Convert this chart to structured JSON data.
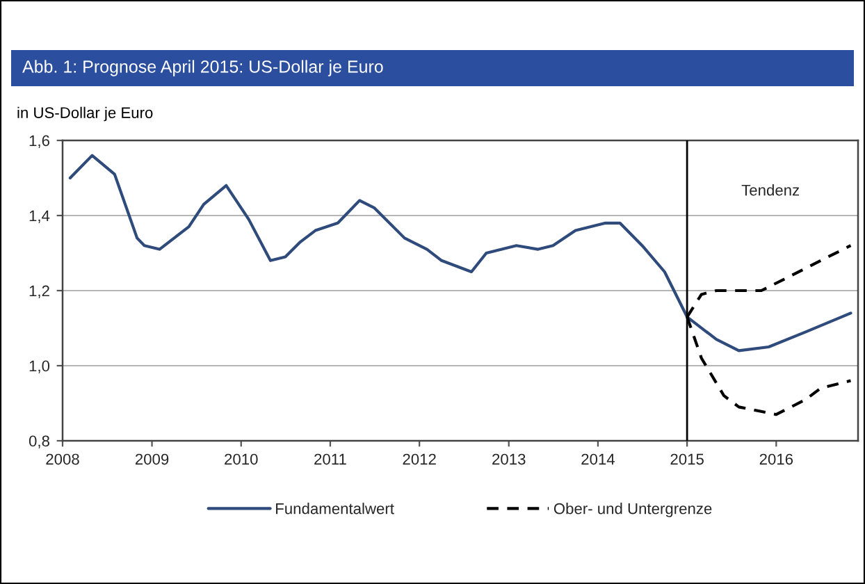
{
  "chart_data": {
    "type": "line",
    "title": "Abb. 1: Prognose April 2015: US-Dollar je Euro",
    "ylabel": "in US-Dollar je Euro",
    "annotations": [
      "Tendenz"
    ],
    "xlim": [
      "2008-01",
      "2016-12"
    ],
    "xticks": [
      "2008",
      "2009",
      "2010",
      "2011",
      "2012",
      "2013",
      "2014",
      "2015",
      "2016"
    ],
    "ylim": [
      0.8,
      1.6
    ],
    "yticks": [
      {
        "value": 0.8,
        "label": "0,8"
      },
      {
        "value": 1.0,
        "label": "1,0"
      },
      {
        "value": 1.2,
        "label": "1,2"
      },
      {
        "value": 1.4,
        "label": "1,4"
      },
      {
        "value": 1.6,
        "label": "1,6"
      }
    ],
    "grid": "y",
    "legend": "bottom",
    "ref_lines": [
      {
        "axis": "x",
        "value": "2015-01",
        "color": "#000000",
        "line_style": "solid"
      }
    ],
    "series": [
      {
        "name": "Fundamentalwert",
        "color": "#2f4b7c",
        "line_style": "solid",
        "x": [
          "2008-02",
          "2008-05",
          "2008-08",
          "2008-11",
          "2008-12",
          "2009-02",
          "2009-06",
          "2009-08",
          "2009-11",
          "2010-02",
          "2010-05",
          "2010-07",
          "2010-09",
          "2010-11",
          "2011-02",
          "2011-05",
          "2011-07",
          "2011-11",
          "2012-02",
          "2012-04",
          "2012-08",
          "2012-10",
          "2013-02",
          "2013-05",
          "2013-07",
          "2013-10",
          "2014-02",
          "2014-04",
          "2014-07",
          "2014-10",
          "2015-01",
          "2015-05",
          "2015-08",
          "2015-12",
          "2016-05",
          "2016-11"
        ],
        "values": [
          1.5,
          1.56,
          1.51,
          1.34,
          1.32,
          1.31,
          1.37,
          1.43,
          1.48,
          1.39,
          1.28,
          1.29,
          1.33,
          1.36,
          1.38,
          1.44,
          1.42,
          1.34,
          1.31,
          1.28,
          1.25,
          1.3,
          1.32,
          1.31,
          1.32,
          1.36,
          1.38,
          1.38,
          1.32,
          1.25,
          1.13,
          1.07,
          1.04,
          1.05,
          1.09,
          1.14
        ]
      },
      {
        "name": "Ober- und Untergrenze",
        "color": "#000000",
        "line_style": "dashed",
        "x": [
          "2015-01",
          "2015-03",
          "2015-05",
          "2015-08",
          "2015-11",
          "2016-02",
          "2016-07",
          "2016-11"
        ],
        "values": [
          1.13,
          1.19,
          1.2,
          1.2,
          1.2,
          1.23,
          1.28,
          1.32
        ]
      },
      {
        "color": "#000000",
        "line_style": "dashed",
        "x": [
          "2015-01",
          "2015-03",
          "2015-06",
          "2015-08",
          "2016-01",
          "2016-05",
          "2016-07",
          "2016-11"
        ],
        "values": [
          1.13,
          1.02,
          0.92,
          0.89,
          0.87,
          0.91,
          0.94,
          0.96
        ]
      }
    ]
  }
}
